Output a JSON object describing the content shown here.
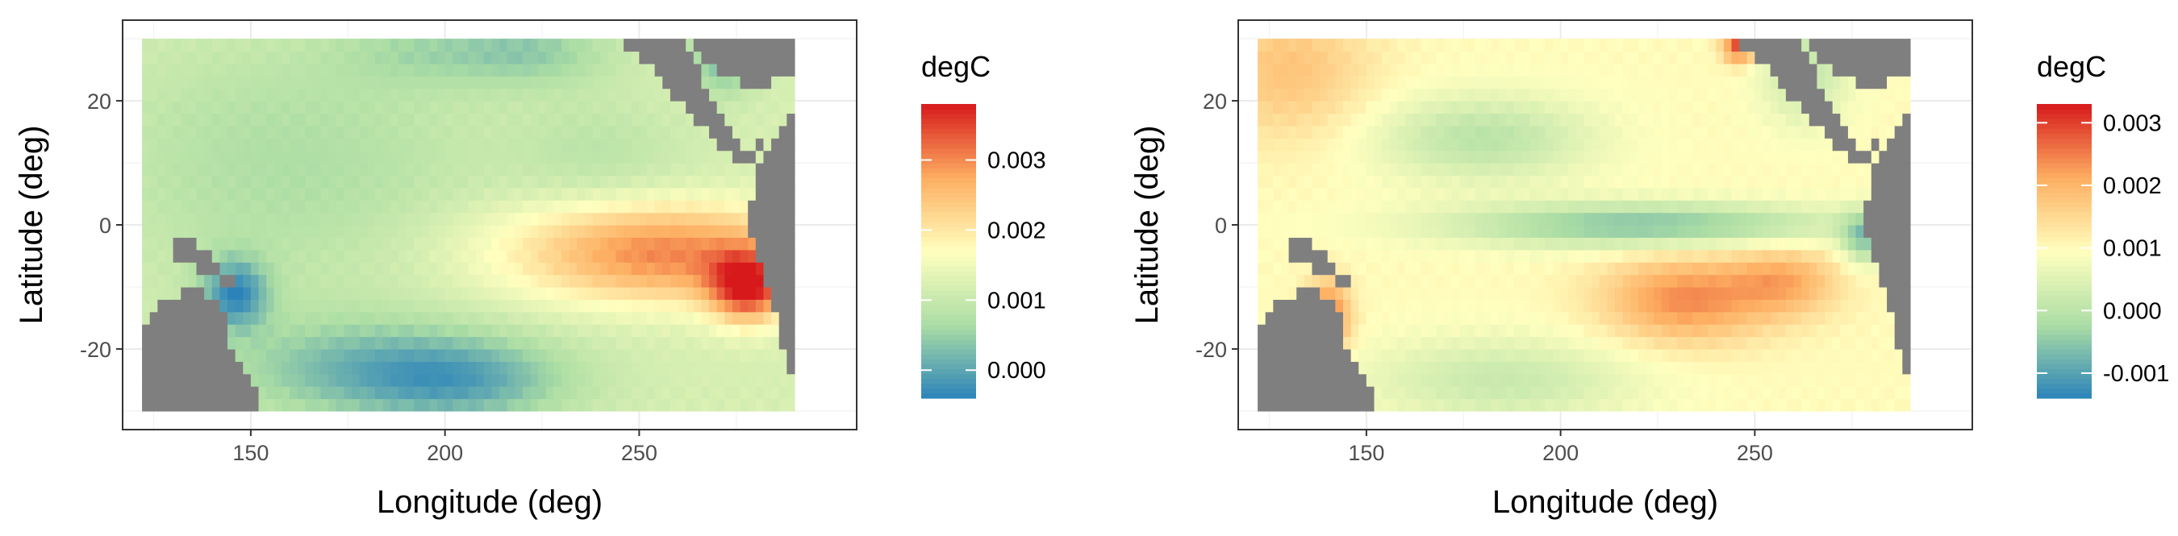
{
  "chart_data": [
    {
      "type": "heatmap",
      "title": "",
      "xlabel": "Longitude (deg)",
      "ylabel": "Latitude (deg)",
      "x_ticks": [
        150,
        200,
        250
      ],
      "y_ticks": [
        20,
        0,
        -20
      ],
      "xlim": [
        117,
        306
      ],
      "ylim": [
        -33,
        33
      ],
      "data_extent": {
        "lon": [
          122,
          290
        ],
        "lat": [
          -30,
          30
        ]
      },
      "grid": true,
      "missing_color": "#7f7f7f",
      "colorscale": [
        "#2b83ba",
        "#abdda4",
        "#ffffbf",
        "#fdae61",
        "#d7191c"
      ],
      "legend": {
        "title": "degC",
        "placement": "right",
        "min": -0.0004,
        "max": 0.0038,
        "ticks": [
          0.0,
          0.001,
          0.002,
          0.003
        ],
        "tick_labels": [
          "0.000",
          "0.001",
          "0.002",
          "0.003"
        ]
      },
      "field": {
        "base": 0.0012,
        "features": [
          {
            "lon": 278,
            "lat": -10,
            "amp": 0.0022,
            "slon": 7,
            "slat": 4
          },
          {
            "lon": 262,
            "lat": -6,
            "amp": 0.0012,
            "slon": 22,
            "slat": 5
          },
          {
            "lon": 235,
            "lat": -6,
            "amp": 0.0006,
            "slon": 25,
            "slat": 5
          },
          {
            "lon": 255,
            "lat": 0,
            "amp": 0.0006,
            "slon": 30,
            "slat": 4
          },
          {
            "lon": 146,
            "lat": -11,
            "amp": -0.0014,
            "slon": 6,
            "slat": 4
          },
          {
            "lon": 175,
            "lat": -23,
            "amp": -0.0008,
            "slon": 25,
            "slat": 6
          },
          {
            "lon": 205,
            "lat": -25,
            "amp": -0.001,
            "slon": 20,
            "slat": 5
          },
          {
            "lon": 160,
            "lat": 10,
            "amp": -0.0005,
            "slon": 35,
            "slat": 15
          },
          {
            "lon": 222,
            "lat": 28,
            "amp": -0.0007,
            "slon": 15,
            "slat": 4
          },
          {
            "lon": 192,
            "lat": 28,
            "amp": -0.0004,
            "slon": 15,
            "slat": 4
          },
          {
            "lon": 272,
            "lat": 27,
            "amp": -0.001,
            "slon": 6,
            "slat": 4
          },
          {
            "lon": 240,
            "lat": 12,
            "amp": -0.0003,
            "slon": 15,
            "slat": 6
          }
        ]
      }
    },
    {
      "type": "heatmap",
      "title": "",
      "xlabel": "Longitude (deg)",
      "ylabel": "Latitude (deg)",
      "x_ticks": [
        150,
        200,
        250
      ],
      "y_ticks": [
        20,
        0,
        -20
      ],
      "xlim": [
        117,
        306
      ],
      "ylim": [
        -33,
        33
      ],
      "data_extent": {
        "lon": [
          122,
          290
        ],
        "lat": [
          -30,
          30
        ]
      },
      "grid": true,
      "missing_color": "#7f7f7f",
      "colorscale": [
        "#2b83ba",
        "#abdda4",
        "#ffffbf",
        "#fdae61",
        "#d7191c"
      ],
      "legend": {
        "title": "degC",
        "placement": "right",
        "min": -0.0014,
        "max": 0.0033,
        "ticks": [
          -0.001,
          0.0,
          0.001,
          0.002,
          0.003
        ],
        "tick_labels": [
          "-0.001",
          "0.000",
          "0.001",
          "0.002",
          "0.003"
        ]
      },
      "field": {
        "base": 0.001,
        "features": [
          {
            "lon": 232,
            "lat": -12,
            "amp": 0.0014,
            "slon": 15,
            "slat": 5
          },
          {
            "lon": 258,
            "lat": -9,
            "amp": 0.001,
            "slon": 10,
            "slat": 4
          },
          {
            "lon": 140,
            "lat": -15,
            "amp": 0.0018,
            "slon": 4,
            "slat": 4
          },
          {
            "lon": 130,
            "lat": 25,
            "amp": 0.0008,
            "slon": 15,
            "slat": 8
          },
          {
            "lon": 246,
            "lat": 29,
            "amp": 0.002,
            "slon": 3,
            "slat": 2
          },
          {
            "lon": 222,
            "lat": 0,
            "amp": -0.0016,
            "slon": 35,
            "slat": 2.5
          },
          {
            "lon": 278,
            "lat": -2,
            "amp": -0.0014,
            "slon": 4,
            "slat": 3
          },
          {
            "lon": 180,
            "lat": 14,
            "amp": -0.001,
            "slon": 20,
            "slat": 5
          },
          {
            "lon": 185,
            "lat": -25,
            "amp": -0.0008,
            "slon": 25,
            "slat": 5
          },
          {
            "lon": 263,
            "lat": 25,
            "amp": -0.0009,
            "slon": 8,
            "slat": 6
          }
        ]
      }
    }
  ]
}
